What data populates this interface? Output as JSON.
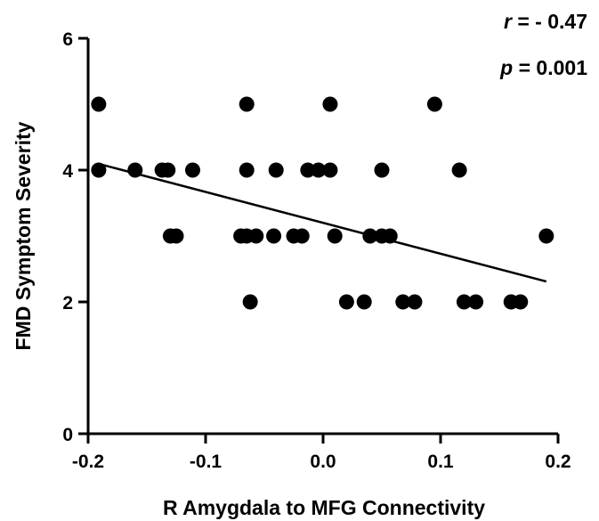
{
  "chart_data": {
    "type": "scatter",
    "xlabel": "R Amygdala to MFG Connectivity",
    "ylabel": "FMD Symptom Severity",
    "xlim": [
      -0.2,
      0.2
    ],
    "ylim": [
      0,
      6
    ],
    "x_ticks": [
      -0.2,
      -0.1,
      0.0,
      0.1,
      0.2
    ],
    "x_tick_labels": [
      "-0.2",
      "-0.1",
      "0.0",
      "0.1",
      "0.2"
    ],
    "y_ticks": [
      0,
      2,
      4,
      6
    ],
    "y_tick_labels": [
      "0",
      "2",
      "4",
      "6"
    ],
    "grid": false,
    "points": [
      {
        "x": -0.191,
        "y": 5
      },
      {
        "x": -0.065,
        "y": 5
      },
      {
        "x": 0.006,
        "y": 5
      },
      {
        "x": 0.095,
        "y": 5
      },
      {
        "x": -0.191,
        "y": 4
      },
      {
        "x": -0.16,
        "y": 4
      },
      {
        "x": -0.137,
        "y": 4
      },
      {
        "x": -0.132,
        "y": 4
      },
      {
        "x": -0.111,
        "y": 4
      },
      {
        "x": -0.065,
        "y": 4
      },
      {
        "x": -0.04,
        "y": 4
      },
      {
        "x": -0.013,
        "y": 4
      },
      {
        "x": -0.004,
        "y": 4
      },
      {
        "x": 0.006,
        "y": 4
      },
      {
        "x": 0.05,
        "y": 4
      },
      {
        "x": 0.116,
        "y": 4
      },
      {
        "x": -0.13,
        "y": 3
      },
      {
        "x": -0.125,
        "y": 3
      },
      {
        "x": -0.07,
        "y": 3
      },
      {
        "x": -0.065,
        "y": 3
      },
      {
        "x": -0.057,
        "y": 3
      },
      {
        "x": -0.042,
        "y": 3
      },
      {
        "x": -0.025,
        "y": 3
      },
      {
        "x": -0.018,
        "y": 3
      },
      {
        "x": 0.01,
        "y": 3
      },
      {
        "x": 0.04,
        "y": 3
      },
      {
        "x": 0.05,
        "y": 3
      },
      {
        "x": 0.057,
        "y": 3
      },
      {
        "x": 0.19,
        "y": 3
      },
      {
        "x": -0.062,
        "y": 2
      },
      {
        "x": 0.02,
        "y": 2
      },
      {
        "x": 0.035,
        "y": 2
      },
      {
        "x": 0.068,
        "y": 2
      },
      {
        "x": 0.078,
        "y": 2
      },
      {
        "x": 0.12,
        "y": 2
      },
      {
        "x": 0.13,
        "y": 2
      },
      {
        "x": 0.16,
        "y": 2
      },
      {
        "x": 0.168,
        "y": 2
      }
    ],
    "regression_line": {
      "x": [
        -0.19,
        0.19
      ],
      "y": [
        4.09,
        2.31
      ]
    },
    "annotations": {
      "r_symbol": "r",
      "r_value": " = - 0.47",
      "p_symbol": "p",
      "p_value": " = 0.001"
    },
    "colors": {
      "points": "#000000",
      "line": "#000000"
    }
  }
}
